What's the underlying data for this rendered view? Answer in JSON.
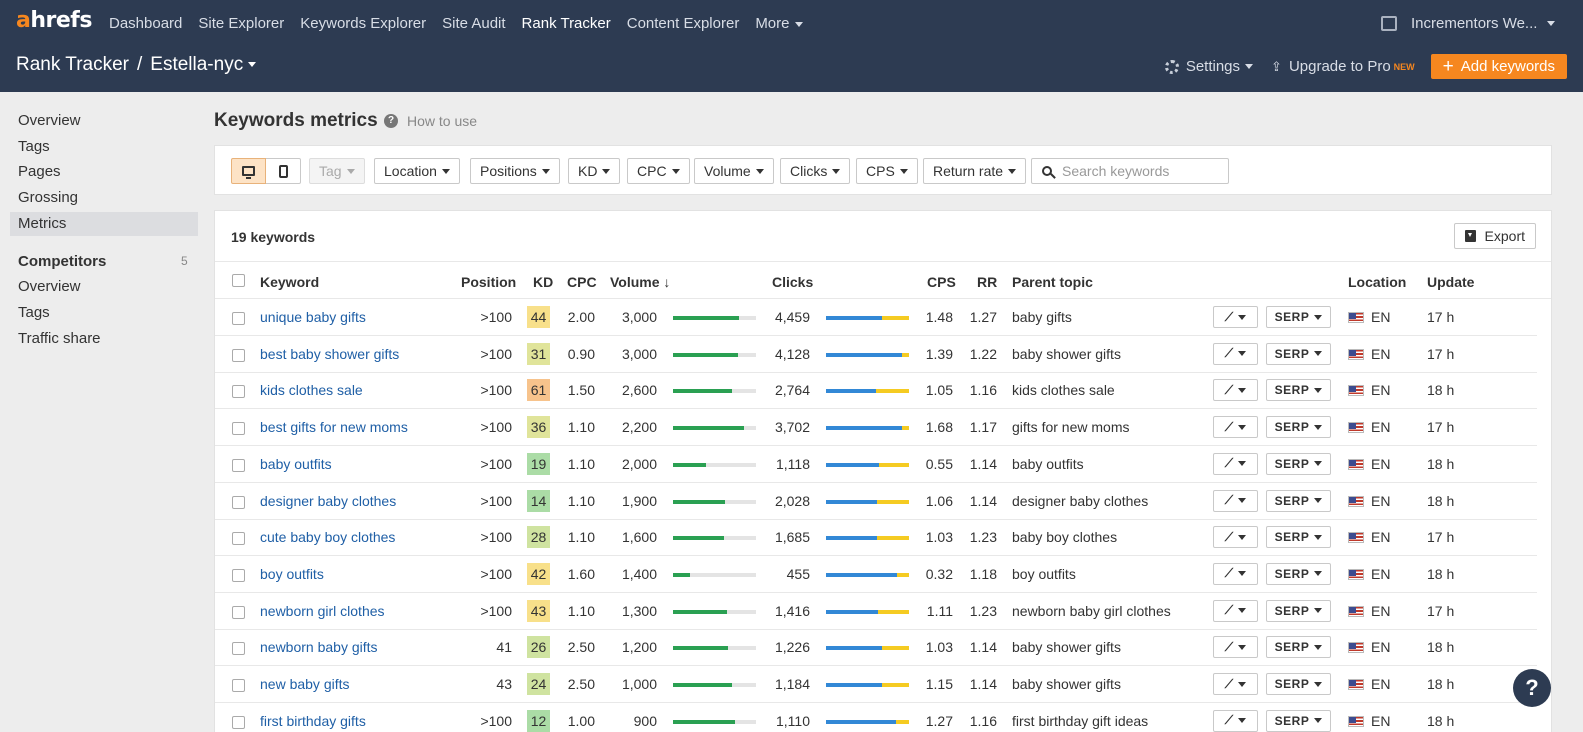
{
  "brand": {
    "logo_a": "a",
    "logo_rest": "hrefs"
  },
  "nav": {
    "items": [
      "Dashboard",
      "Site Explorer",
      "Keywords Explorer",
      "Site Audit",
      "Rank Tracker",
      "Content Explorer"
    ],
    "more": "More",
    "active": "Rank Tracker"
  },
  "account": {
    "name": "Incrementors We..."
  },
  "breadcrumb": {
    "root": "Rank Tracker",
    "sep": "/",
    "project": "Estella-nyc"
  },
  "top_actions": {
    "settings": "Settings",
    "upgrade": "Upgrade to Pro",
    "upgrade_badge": "NEW",
    "add": "Add keywords"
  },
  "sidebar": {
    "items": [
      "Overview",
      "Tags",
      "Pages",
      "Grossing",
      "Metrics"
    ],
    "active": "Metrics",
    "competitors_title": "Competitors",
    "competitors_count": "5",
    "competitor_items": [
      "Overview",
      "Tags",
      "Traffic share"
    ]
  },
  "page": {
    "title": "Keywords metrics",
    "how_to_use": "How to use"
  },
  "filters": {
    "tag": "Tag",
    "location": "Location",
    "positions": "Positions",
    "kd": "KD",
    "cpc": "CPC",
    "volume": "Volume",
    "clicks": "Clicks",
    "cps": "CPS",
    "return_rate": "Return rate",
    "search_placeholder": "Search keywords"
  },
  "table": {
    "count_label": "19 keywords",
    "export": "Export",
    "headers": {
      "keyword": "Keyword",
      "position": "Position",
      "kd": "KD",
      "cpc": "CPC",
      "volume": "Volume ↓",
      "clicks": "Clicks",
      "cps": "CPS",
      "rr": "RR",
      "parent": "Parent topic",
      "location": "Location",
      "update": "Update"
    },
    "serp_label": "SERP",
    "rows": [
      {
        "keyword": "unique baby gifts",
        "position": ">100",
        "kd": "44",
        "kd_color": "#f8e08a",
        "cpc": "2.00",
        "volume": "3,000",
        "vol_fill": 0.79,
        "clicks": "4,459",
        "organic_fill": 0.67,
        "paid_fill": 0.33,
        "cps": "1.48",
        "rr": "1.27",
        "parent": "baby gifts",
        "lang": "EN",
        "update": "17 h"
      },
      {
        "keyword": "best baby shower gifts",
        "position": ">100",
        "kd": "31",
        "kd_color": "#e0e49a",
        "cpc": "0.90",
        "volume": "3,000",
        "vol_fill": 0.78,
        "clicks": "4,128",
        "organic_fill": 0.91,
        "paid_fill": 0.09,
        "cps": "1.39",
        "rr": "1.22",
        "parent": "baby shower gifts",
        "lang": "EN",
        "update": "17 h"
      },
      {
        "keyword": "kids clothes sale",
        "position": ">100",
        "kd": "61",
        "kd_color": "#f7c38c",
        "cpc": "1.50",
        "volume": "2,600",
        "vol_fill": 0.71,
        "clicks": "2,764",
        "organic_fill": 0.6,
        "paid_fill": 0.4,
        "cps": "1.05",
        "rr": "1.16",
        "parent": "kids clothes sale",
        "lang": "EN",
        "update": "18 h"
      },
      {
        "keyword": "best gifts for new moms",
        "position": ">100",
        "kd": "36",
        "kd_color": "#e0e49a",
        "cpc": "1.10",
        "volume": "2,200",
        "vol_fill": 0.85,
        "clicks": "3,702",
        "organic_fill": 0.91,
        "paid_fill": 0.09,
        "cps": "1.68",
        "rr": "1.17",
        "parent": "gifts for new moms",
        "lang": "EN",
        "update": "17 h"
      },
      {
        "keyword": "baby outfits",
        "position": ">100",
        "kd": "19",
        "kd_color": "#abdca6",
        "cpc": "1.10",
        "volume": "2,000",
        "vol_fill": 0.4,
        "clicks": "1,118",
        "organic_fill": 0.64,
        "paid_fill": 0.36,
        "cps": "0.55",
        "rr": "1.14",
        "parent": "baby outfits",
        "lang": "EN",
        "update": "18 h"
      },
      {
        "keyword": "designer baby clothes",
        "position": ">100",
        "kd": "14",
        "kd_color": "#abdca6",
        "cpc": "1.10",
        "volume": "1,900",
        "vol_fill": 0.63,
        "clicks": "2,028",
        "organic_fill": 0.62,
        "paid_fill": 0.38,
        "cps": "1.06",
        "rr": "1.14",
        "parent": "designer baby clothes",
        "lang": "EN",
        "update": "18 h"
      },
      {
        "keyword": "cute baby boy clothes",
        "position": ">100",
        "kd": "28",
        "kd_color": "#cfe3a0",
        "cpc": "1.10",
        "volume": "1,600",
        "vol_fill": 0.62,
        "clicks": "1,685",
        "organic_fill": 0.62,
        "paid_fill": 0.38,
        "cps": "1.03",
        "rr": "1.23",
        "parent": "baby boy clothes",
        "lang": "EN",
        "update": "17 h"
      },
      {
        "keyword": "boy outfits",
        "position": ">100",
        "kd": "42",
        "kd_color": "#f8e08a",
        "cpc": "1.60",
        "volume": "1,400",
        "vol_fill": 0.2,
        "clicks": "455",
        "organic_fill": 0.86,
        "paid_fill": 0.14,
        "cps": "0.32",
        "rr": "1.18",
        "parent": "boy outfits",
        "lang": "EN",
        "update": "18 h"
      },
      {
        "keyword": "newborn girl clothes",
        "position": ">100",
        "kd": "43",
        "kd_color": "#f8e08a",
        "cpc": "1.10",
        "volume": "1,300",
        "vol_fill": 0.65,
        "clicks": "1,416",
        "organic_fill": 0.63,
        "paid_fill": 0.37,
        "cps": "1.11",
        "rr": "1.23",
        "parent": "newborn baby girl clothes",
        "lang": "EN",
        "update": "17 h"
      },
      {
        "keyword": "newborn baby gifts",
        "position": "41",
        "kd": "26",
        "kd_color": "#cfe3a0",
        "cpc": "2.50",
        "volume": "1,200",
        "vol_fill": 0.66,
        "clicks": "1,226",
        "organic_fill": 0.68,
        "paid_fill": 0.32,
        "cps": "1.03",
        "rr": "1.14",
        "parent": "baby shower gifts",
        "lang": "EN",
        "update": "18 h"
      },
      {
        "keyword": "new baby gifts",
        "position": "43",
        "kd": "24",
        "kd_color": "#cfe3a0",
        "cpc": "2.50",
        "volume": "1,000",
        "vol_fill": 0.71,
        "clicks": "1,184",
        "organic_fill": 0.67,
        "paid_fill": 0.33,
        "cps": "1.15",
        "rr": "1.14",
        "parent": "baby shower gifts",
        "lang": "EN",
        "update": "18 h"
      },
      {
        "keyword": "first birthday gifts",
        "position": ">100",
        "kd": "12",
        "kd_color": "#abdca6",
        "cpc": "1.00",
        "volume": "900",
        "vol_fill": 0.75,
        "clicks": "1,110",
        "organic_fill": 0.84,
        "paid_fill": 0.16,
        "cps": "1.27",
        "rr": "1.16",
        "parent": "first birthday gift ideas",
        "lang": "EN",
        "update": "18 h"
      }
    ]
  },
  "help": "?"
}
